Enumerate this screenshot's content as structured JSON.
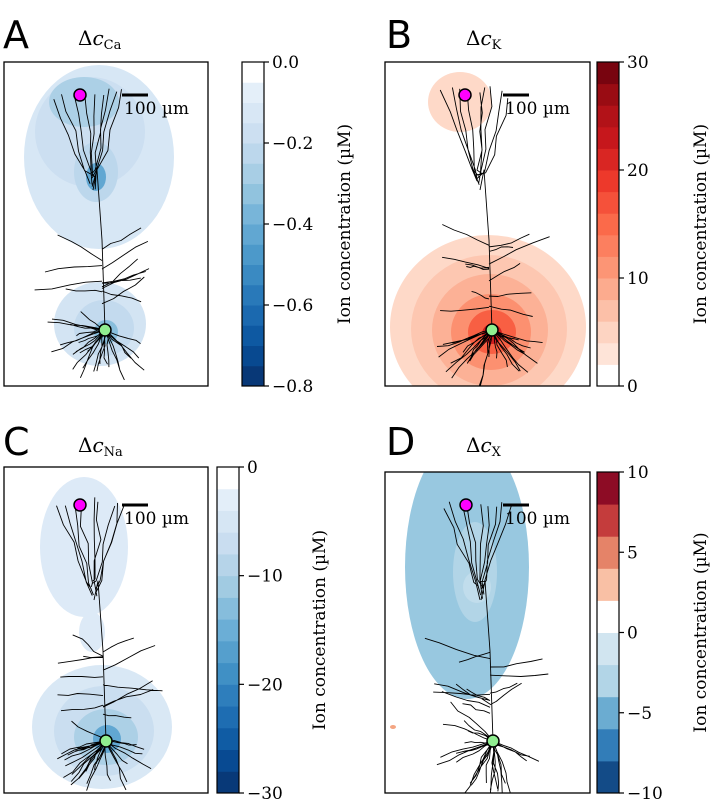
{
  "chart_data": [
    {
      "type": "heatmap",
      "panel_label": "A",
      "title_main": "Δc",
      "title_sub": "Ca",
      "colormap": "Blues",
      "colorbar": {
        "label": "Ion concentration (µM)",
        "range": [
          -0.8,
          0.0
        ],
        "levels": 16,
        "ticks": [
          "0.0",
          "−0.2",
          "−0.4",
          "−0.6",
          "−0.8"
        ],
        "tick_values": [
          0.0,
          -0.2,
          -0.4,
          -0.6,
          -0.8
        ]
      },
      "scale_bar": "100 µm",
      "markers": [
        {
          "name": "apical",
          "color": "#ff00ff"
        },
        {
          "name": "soma",
          "color": "#90ee90"
        }
      ]
    },
    {
      "type": "heatmap",
      "panel_label": "B",
      "title_main": "Δc",
      "title_sub": "K",
      "colormap": "Reds",
      "colorbar": {
        "label": "Ion concentration (µM)",
        "range": [
          0,
          30
        ],
        "levels": 15,
        "ticks": [
          "30",
          "20",
          "10",
          "0"
        ],
        "tick_values": [
          30,
          20,
          10,
          0
        ]
      },
      "scale_bar": "100 µm",
      "markers": [
        {
          "name": "apical",
          "color": "#ff00ff"
        },
        {
          "name": "soma",
          "color": "#90ee90"
        }
      ]
    },
    {
      "type": "heatmap",
      "panel_label": "C",
      "title_main": "Δc",
      "title_sub": "Na",
      "colormap": "Blues",
      "colorbar": {
        "label": "Ion concentration (µM)",
        "range": [
          -30,
          0
        ],
        "levels": 15,
        "ticks": [
          "0",
          "−10",
          "−20",
          "−30"
        ],
        "tick_values": [
          0,
          -10,
          -20,
          -30
        ]
      },
      "scale_bar": "100 µm",
      "markers": [
        {
          "name": "apical",
          "color": "#ff00ff"
        },
        {
          "name": "soma",
          "color": "#90ee90"
        }
      ]
    },
    {
      "type": "heatmap",
      "panel_label": "D",
      "title_main": "Δc",
      "title_sub": "X",
      "colormap": "RdBu_r",
      "colorbar": {
        "label": "Ion concentration (µM)",
        "range": [
          -10,
          10
        ],
        "levels": 10,
        "ticks": [
          "10",
          "5",
          "0",
          "−5",
          "−10"
        ],
        "tick_values": [
          10,
          5,
          0,
          -5,
          -10
        ]
      },
      "scale_bar": "100 µm",
      "markers": [
        {
          "name": "apical",
          "color": "#ff00ff"
        },
        {
          "name": "soma",
          "color": "#90ee90"
        }
      ]
    }
  ]
}
